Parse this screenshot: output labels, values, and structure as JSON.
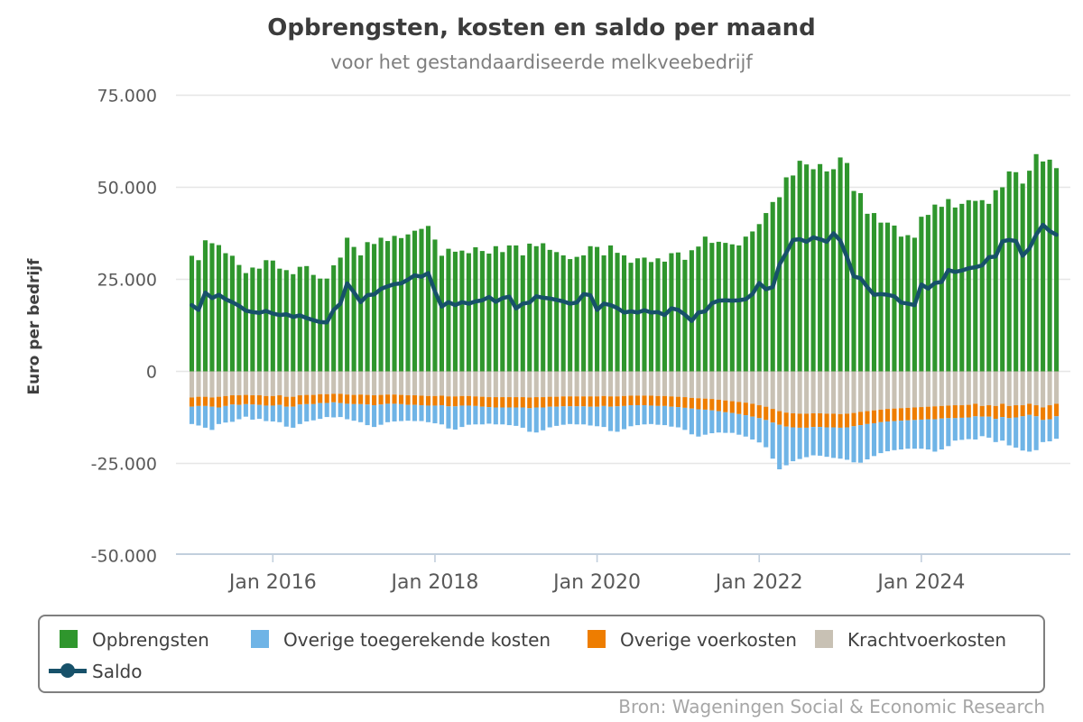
{
  "header": {
    "title": "Opbrengsten, kosten en saldo per maand",
    "subtitle": "voor het gestandaardiseerde melkveebedrijf"
  },
  "y_axis": {
    "title": "Euro per bedrijf",
    "ticks": [
      {
        "label": "75.000",
        "value": 75000
      },
      {
        "label": "50.000",
        "value": 50000
      },
      {
        "label": "25.000",
        "value": 25000
      },
      {
        "label": "0",
        "value": 0
      },
      {
        "label": "-25.000",
        "value": -25000
      },
      {
        "label": "-50.000",
        "value": -50000
      }
    ]
  },
  "x_axis": {
    "ticks": [
      {
        "label": "Jan 2016",
        "month_index": 12
      },
      {
        "label": "Jan 2018",
        "month_index": 36
      },
      {
        "label": "Jan 2020",
        "month_index": 60
      },
      {
        "label": "Jan 2022",
        "month_index": 84
      },
      {
        "label": "Jan 2024",
        "month_index": 108
      }
    ]
  },
  "colors": {
    "opbrengsten": "#2f962d",
    "overige_toegerekende_kosten": "#6fb4e6",
    "overige_voerkosten": "#ee7d00",
    "krachtvoerkosten": "#c8c1b4",
    "saldo": "#17516a",
    "gridline": "#e6e6e6",
    "axis": "#c2cfdd",
    "tick_label": "#595959"
  },
  "legend": {
    "items": [
      {
        "key": "opbrengsten",
        "label": "Opbrengsten"
      },
      {
        "key": "overige_toegerekende_kosten",
        "label": "Overige toegerekende kosten"
      },
      {
        "key": "overige_voerkosten",
        "label": "Overige voerkosten"
      },
      {
        "key": "krachtvoerkosten",
        "label": "Krachtvoerkosten"
      },
      {
        "key": "saldo",
        "label": "Saldo"
      }
    ]
  },
  "footer": {
    "source": "Bron: Wageningen Social & Economic Research"
  },
  "chart_data": {
    "type": "combo-stacked-bar-line",
    "title": "Opbrengsten, kosten en saldo per maand",
    "subtitle": "voor het gestandaardiseerde melkveebedrijf",
    "ylabel": "Euro per bedrijf",
    "ylim": [
      -50000,
      75000
    ],
    "grid": true,
    "legend_position": "bottom",
    "x_months": [
      "2015-01",
      "2015-02",
      "2015-03",
      "2015-04",
      "2015-05",
      "2015-06",
      "2015-07",
      "2015-08",
      "2015-09",
      "2015-10",
      "2015-11",
      "2015-12",
      "2016-01",
      "2016-02",
      "2016-03",
      "2016-04",
      "2016-05",
      "2016-06",
      "2016-07",
      "2016-08",
      "2016-09",
      "2016-10",
      "2016-11",
      "2016-12",
      "2017-01",
      "2017-02",
      "2017-03",
      "2017-04",
      "2017-05",
      "2017-06",
      "2017-07",
      "2017-08",
      "2017-09",
      "2017-10",
      "2017-11",
      "2017-12",
      "2018-01",
      "2018-02",
      "2018-03",
      "2018-04",
      "2018-05",
      "2018-06",
      "2018-07",
      "2018-08",
      "2018-09",
      "2018-10",
      "2018-11",
      "2018-12",
      "2019-01",
      "2019-02",
      "2019-03",
      "2019-04",
      "2019-05",
      "2019-06",
      "2019-07",
      "2019-08",
      "2019-09",
      "2019-10",
      "2019-11",
      "2019-12",
      "2020-01",
      "2020-02",
      "2020-03",
      "2020-04",
      "2020-05",
      "2020-06",
      "2020-07",
      "2020-08",
      "2020-09",
      "2020-10",
      "2020-11",
      "2020-12",
      "2021-01",
      "2021-02",
      "2021-03",
      "2021-04",
      "2021-05",
      "2021-06",
      "2021-07",
      "2021-08",
      "2021-09",
      "2021-10",
      "2021-11",
      "2021-12",
      "2022-01",
      "2022-02",
      "2022-03",
      "2022-04",
      "2022-05",
      "2022-06",
      "2022-07",
      "2022-08",
      "2022-09",
      "2022-10",
      "2022-11",
      "2022-12",
      "2023-01",
      "2023-02",
      "2023-03",
      "2023-04",
      "2023-05",
      "2023-06",
      "2023-07",
      "2023-08",
      "2023-09",
      "2023-10",
      "2023-11",
      "2023-12",
      "2024-01",
      "2024-02",
      "2024-03",
      "2024-04",
      "2024-05",
      "2024-06",
      "2024-07",
      "2024-08",
      "2024-09",
      "2024-10",
      "2024-11",
      "2024-12",
      "2025-01",
      "2025-02",
      "2025-03",
      "2025-04",
      "2025-05",
      "2025-06",
      "2025-07",
      "2025-08",
      "2025-09"
    ],
    "series": [
      {
        "name": "Opbrengsten",
        "type": "bar",
        "stack": "up",
        "color_key": "opbrengsten",
        "values": [
          31400,
          30200,
          35600,
          34800,
          34300,
          32100,
          31400,
          28900,
          26700,
          28200,
          27900,
          30200,
          30100,
          27900,
          27500,
          26400,
          28400,
          28600,
          26200,
          25200,
          25200,
          28800,
          30900,
          36300,
          33800,
          31500,
          35100,
          34600,
          36300,
          35400,
          36800,
          36200,
          37200,
          38200,
          38700,
          39500,
          35800,
          31400,
          33300,
          32500,
          32800,
          32100,
          33700,
          32700,
          32000,
          34000,
          32400,
          34200,
          34200,
          31500,
          34700,
          34000,
          34800,
          33000,
          32400,
          31500,
          30500,
          31100,
          31500,
          34000,
          33800,
          31500,
          34200,
          32200,
          31500,
          29500,
          30700,
          30900,
          29700,
          30700,
          29800,
          32100,
          32300,
          30300,
          32900,
          33900,
          36600,
          34900,
          35200,
          34900,
          34500,
          34200,
          36600,
          38000,
          40000,
          43000,
          46000,
          47300,
          52700,
          53200,
          57200,
          56200,
          54900,
          56300,
          54300,
          54900,
          58100,
          56600,
          49000,
          48400,
          42800,
          43000,
          40400,
          40400,
          39600,
          36600,
          37000,
          36300,
          42000,
          42500,
          45300,
          44700,
          46800,
          44500,
          45500,
          46500,
          46300,
          46500,
          45500,
          49200,
          50000,
          54300,
          54100,
          51000,
          54500,
          59000,
          57000,
          57500,
          55200
        ]
      },
      {
        "name": "Krachtvoerkosten",
        "type": "bar",
        "stack": "down",
        "color_key": "krachtvoerkosten",
        "values": [
          -7100,
          -6900,
          -6900,
          -7100,
          -6900,
          -6700,
          -6500,
          -6500,
          -6400,
          -6500,
          -6500,
          -6700,
          -6700,
          -6500,
          -6900,
          -6900,
          -6500,
          -6400,
          -6400,
          -6200,
          -6200,
          -6100,
          -6100,
          -6300,
          -6400,
          -6300,
          -6400,
          -6500,
          -6400,
          -6300,
          -6300,
          -6400,
          -6500,
          -6500,
          -6600,
          -6700,
          -6700,
          -6600,
          -6800,
          -6800,
          -6700,
          -6700,
          -6800,
          -6900,
          -7000,
          -7000,
          -7000,
          -7000,
          -7000,
          -7000,
          -7100,
          -7000,
          -7000,
          -6900,
          -6900,
          -6800,
          -6800,
          -6800,
          -6800,
          -6800,
          -6800,
          -6700,
          -6800,
          -6800,
          -6700,
          -6600,
          -6600,
          -6600,
          -6600,
          -6700,
          -6700,
          -6800,
          -6900,
          -7000,
          -7200,
          -7300,
          -7400,
          -7500,
          -7700,
          -7900,
          -8100,
          -8300,
          -8500,
          -8800,
          -9200,
          -9600,
          -10200,
          -10800,
          -11200,
          -11400,
          -11500,
          -11500,
          -11400,
          -11400,
          -11500,
          -11500,
          -11600,
          -11500,
          -11300,
          -11000,
          -10800,
          -10600,
          -10400,
          -10200,
          -10100,
          -10000,
          -9900,
          -9800,
          -9700,
          -9600,
          -9500,
          -9400,
          -9300,
          -9200,
          -9200,
          -9100,
          -8800,
          -9400,
          -9200,
          -9400,
          -8800,
          -9400,
          -9200,
          -9200,
          -8800,
          -9200,
          -9800,
          -9200,
          -8800
        ]
      },
      {
        "name": "Overige voerkosten",
        "type": "bar",
        "stack": "down",
        "color_key": "overige_voerkosten",
        "values": [
          -2500,
          -2500,
          -2500,
          -2500,
          -2900,
          -2700,
          -2500,
          -2600,
          -2500,
          -2500,
          -2600,
          -2600,
          -2600,
          -2600,
          -2700,
          -2700,
          -2500,
          -2500,
          -2500,
          -2400,
          -2400,
          -2300,
          -2500,
          -2500,
          -2500,
          -2600,
          -2600,
          -2700,
          -2600,
          -2500,
          -2500,
          -2500,
          -2600,
          -2600,
          -2600,
          -2600,
          -2600,
          -2600,
          -2700,
          -2700,
          -2600,
          -2600,
          -2600,
          -2700,
          -2700,
          -2800,
          -2800,
          -2800,
          -2800,
          -2800,
          -2900,
          -2800,
          -2800,
          -2700,
          -2700,
          -2700,
          -2700,
          -2700,
          -2700,
          -2800,
          -2800,
          -2700,
          -2800,
          -2700,
          -2700,
          -2600,
          -2600,
          -2600,
          -2700,
          -2700,
          -2700,
          -2800,
          -2800,
          -2900,
          -2900,
          -3000,
          -3000,
          -3100,
          -3100,
          -3200,
          -3200,
          -3300,
          -3400,
          -3500,
          -3500,
          -3600,
          -3700,
          -3700,
          -3800,
          -3800,
          -3800,
          -3800,
          -3700,
          -3700,
          -3700,
          -3700,
          -3700,
          -3700,
          -3600,
          -3600,
          -3500,
          -3500,
          -3400,
          -3400,
          -3400,
          -3400,
          -3400,
          -3400,
          -3400,
          -3400,
          -3500,
          -3400,
          -3400,
          -3500,
          -3400,
          -3400,
          -3400,
          -2900,
          -3100,
          -3500,
          -3600,
          -3300,
          -3300,
          -3000,
          -3000,
          -3000,
          -3400,
          -3800,
          -3400
        ]
      },
      {
        "name": "Overige toegerekende kosten",
        "type": "bar",
        "stack": "down",
        "color_key": "overige_toegerekende_kosten",
        "values": [
          -4700,
          -5300,
          -5900,
          -6300,
          -4500,
          -4500,
          -4700,
          -3900,
          -3400,
          -4100,
          -3800,
          -4200,
          -4300,
          -4700,
          -5400,
          -5700,
          -5300,
          -4700,
          -4400,
          -4300,
          -3800,
          -4100,
          -3800,
          -4200,
          -4500,
          -4900,
          -5600,
          -5900,
          -5500,
          -5000,
          -4800,
          -4600,
          -4300,
          -4400,
          -4300,
          -4500,
          -4800,
          -5200,
          -6000,
          -6300,
          -5800,
          -5200,
          -5000,
          -4800,
          -4500,
          -4600,
          -4600,
          -4800,
          -5000,
          -5500,
          -6400,
          -6800,
          -6200,
          -5600,
          -5200,
          -5000,
          -4800,
          -4900,
          -4900,
          -5100,
          -5300,
          -5700,
          -6600,
          -6900,
          -6300,
          -5700,
          -5400,
          -5200,
          -5000,
          -5100,
          -5200,
          -5400,
          -5500,
          -6000,
          -7000,
          -7400,
          -6800,
          -6200,
          -5800,
          -5600,
          -5400,
          -5600,
          -5800,
          -6200,
          -6600,
          -7400,
          -9800,
          -12100,
          -10500,
          -9200,
          -8500,
          -8000,
          -7700,
          -7800,
          -8000,
          -8300,
          -8400,
          -8800,
          -9800,
          -10200,
          -9600,
          -8900,
          -8400,
          -8100,
          -7900,
          -7800,
          -7700,
          -7800,
          -7900,
          -8200,
          -8800,
          -8400,
          -7600,
          -6100,
          -6000,
          -5900,
          -6300,
          -5300,
          -5700,
          -6300,
          -6400,
          -7400,
          -8200,
          -9300,
          -10000,
          -9200,
          -6000,
          -6000,
          -6100
        ]
      },
      {
        "name": "Saldo",
        "type": "line",
        "color_key": "saldo",
        "values": [
          18000,
          16700,
          21400,
          19900,
          20800,
          19600,
          18800,
          17800,
          16500,
          16100,
          15900,
          16400,
          15700,
          15300,
          15500,
          14800,
          15200,
          14500,
          13900,
          13400,
          13300,
          16700,
          18400,
          23900,
          21500,
          18800,
          20700,
          20900,
          22400,
          23100,
          23700,
          23900,
          24900,
          26100,
          25700,
          26700,
          21700,
          17600,
          18800,
          18000,
          18800,
          18400,
          19000,
          19300,
          20200,
          18900,
          19900,
          20300,
          17100,
          18400,
          18700,
          20400,
          20000,
          19800,
          19400,
          19000,
          18400,
          18700,
          21000,
          20700,
          16700,
          18400,
          18000,
          17200,
          16000,
          16300,
          16000,
          16600,
          16000,
          16100,
          15300,
          17100,
          16700,
          15400,
          13700,
          16000,
          16300,
          18500,
          19200,
          19300,
          19200,
          19300,
          19600,
          21000,
          24000,
          22300,
          22900,
          29000,
          32200,
          35700,
          35900,
          35200,
          36400,
          35900,
          35200,
          37500,
          35500,
          31000,
          25800,
          25300,
          22900,
          20800,
          21000,
          20800,
          20400,
          18700,
          18400,
          18000,
          23600,
          22500,
          24000,
          24300,
          27500,
          27000,
          27400,
          28000,
          28300,
          28800,
          31000,
          31200,
          35300,
          35700,
          35400,
          31400,
          33400,
          37100,
          39800,
          38100,
          37100
        ]
      }
    ]
  }
}
